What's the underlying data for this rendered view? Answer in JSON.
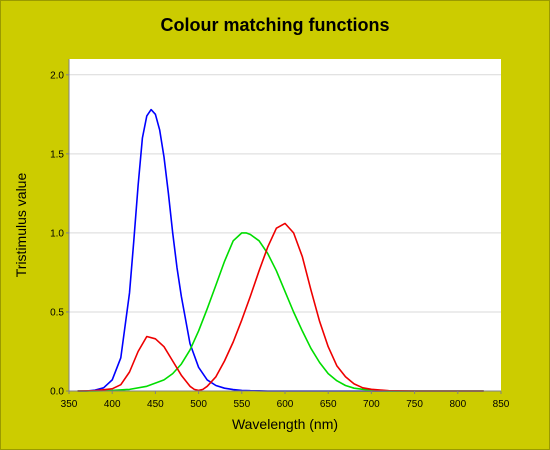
{
  "chart_data": {
    "type": "line",
    "title": "Colour matching functions",
    "xlabel": "Wavelength (nm)",
    "ylabel": "Tristimulus value",
    "xlim": [
      350,
      850
    ],
    "ylim": [
      0,
      2.1
    ],
    "xticks": [
      350,
      400,
      450,
      500,
      550,
      600,
      650,
      700,
      750,
      800,
      850
    ],
    "yticks": [
      0.0,
      0.5,
      1.0,
      1.5,
      2.0
    ],
    "ytick_labels": [
      "0.0",
      "0.5",
      "1.0",
      "1.5",
      "2.0"
    ],
    "grid": "horizontal",
    "background": "#cccc00",
    "plot_background": "#ffffff",
    "series": [
      {
        "color": "#0000ff",
        "x": [
          360,
          370,
          380,
          390,
          400,
          410,
          420,
          425,
          430,
          435,
          440,
          445,
          450,
          455,
          460,
          465,
          470,
          475,
          480,
          490,
          500,
          510,
          520,
          530,
          540,
          550,
          560,
          570,
          580,
          600,
          650,
          700,
          750,
          800,
          830
        ],
        "y": [
          0.0,
          0.0,
          0.005,
          0.02,
          0.07,
          0.21,
          0.62,
          0.95,
          1.3,
          1.6,
          1.74,
          1.78,
          1.75,
          1.65,
          1.48,
          1.25,
          1.0,
          0.78,
          0.6,
          0.3,
          0.15,
          0.07,
          0.035,
          0.018,
          0.009,
          0.004,
          0.002,
          0.001,
          0.0,
          0.0,
          0.0,
          0.0,
          0.0,
          0.0,
          0.0
        ]
      },
      {
        "color": "#00dd00",
        "x": [
          360,
          380,
          400,
          420,
          440,
          460,
          470,
          480,
          490,
          500,
          510,
          520,
          530,
          540,
          550,
          555,
          560,
          570,
          580,
          590,
          600,
          610,
          620,
          630,
          640,
          650,
          660,
          670,
          680,
          700,
          720,
          750,
          800,
          830
        ],
        "y": [
          0.0,
          0.0,
          0.004,
          0.01,
          0.03,
          0.07,
          0.11,
          0.17,
          0.26,
          0.38,
          0.52,
          0.67,
          0.82,
          0.95,
          1.0,
          1.0,
          0.99,
          0.95,
          0.87,
          0.76,
          0.63,
          0.5,
          0.38,
          0.27,
          0.18,
          0.11,
          0.065,
          0.035,
          0.018,
          0.004,
          0.0,
          0.0,
          0.0,
          0.0
        ]
      },
      {
        "color": "#ee0000",
        "x": [
          360,
          380,
          400,
          410,
          420,
          430,
          440,
          450,
          460,
          470,
          480,
          490,
          495,
          500,
          505,
          510,
          520,
          530,
          540,
          550,
          560,
          570,
          580,
          590,
          600,
          610,
          620,
          630,
          640,
          650,
          660,
          670,
          680,
          690,
          700,
          720,
          750,
          800,
          830
        ],
        "y": [
          0.0,
          0.002,
          0.014,
          0.04,
          0.12,
          0.25,
          0.345,
          0.33,
          0.28,
          0.19,
          0.1,
          0.03,
          0.01,
          0.004,
          0.01,
          0.03,
          0.09,
          0.19,
          0.31,
          0.45,
          0.6,
          0.76,
          0.91,
          1.03,
          1.06,
          1.0,
          0.85,
          0.64,
          0.44,
          0.28,
          0.16,
          0.09,
          0.045,
          0.02,
          0.011,
          0.002,
          0.0,
          0.0,
          0.0
        ]
      }
    ]
  }
}
